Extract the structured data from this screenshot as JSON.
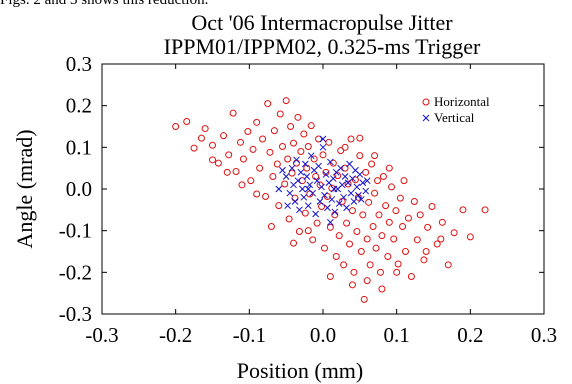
{
  "caption": "Figs. 2 and 3 shows this reduction.",
  "chart_data": {
    "type": "scatter",
    "title": "Oct '06 Intermacropulse Jitter",
    "subtitle": "IPPM01/IPPM02, 0.325-ms Trigger",
    "xlabel": "Position (mm)",
    "ylabel": "Angle (mrad)",
    "xlim": [
      -0.3,
      0.3
    ],
    "ylim": [
      -0.3,
      0.3
    ],
    "xticks": [
      -0.3,
      -0.2,
      -0.1,
      0.0,
      0.1,
      0.2,
      0.3
    ],
    "yticks": [
      -0.3,
      -0.2,
      -0.1,
      0.0,
      0.1,
      0.2,
      0.3
    ],
    "xtick_labels": [
      "-0.3",
      "-0.2",
      "-0.1",
      "0.0",
      "0.1",
      "0.2",
      "0.3"
    ],
    "ytick_labels": [
      "-0.3",
      "-0.2",
      "-0.1",
      "0.0",
      "0.1",
      "0.2",
      "0.3"
    ],
    "grid": false,
    "legend_position": "top-right",
    "series": [
      {
        "name": "Horizontal",
        "marker": "circle",
        "color": "#e01010",
        "points": [
          [
            -0.2,
            0.15
          ],
          [
            -0.185,
            0.162
          ],
          [
            -0.175,
            0.098
          ],
          [
            -0.165,
            0.122
          ],
          [
            -0.16,
            0.145
          ],
          [
            -0.15,
            0.105
          ],
          [
            -0.142,
            0.062
          ],
          [
            -0.135,
            0.128
          ],
          [
            -0.128,
            0.082
          ],
          [
            -0.122,
            0.182
          ],
          [
            -0.118,
            0.042
          ],
          [
            -0.112,
            0.112
          ],
          [
            -0.108,
            0.072
          ],
          [
            -0.102,
            0.138
          ],
          [
            -0.098,
            0.02
          ],
          [
            -0.095,
            0.095
          ],
          [
            -0.09,
            0.16
          ],
          [
            -0.086,
            0.05
          ],
          [
            -0.082,
            0.12
          ],
          [
            -0.078,
            -0.018
          ],
          [
            -0.075,
            0.205
          ],
          [
            -0.072,
            0.088
          ],
          [
            -0.068,
            0.03
          ],
          [
            -0.066,
            0.14
          ],
          [
            -0.062,
            0.06
          ],
          [
            -0.06,
            -0.04
          ],
          [
            -0.058,
            0.18
          ],
          [
            -0.055,
            0.102
          ],
          [
            -0.052,
            0.012
          ],
          [
            -0.05,
            0.212
          ],
          [
            -0.048,
            0.072
          ],
          [
            -0.046,
            -0.072
          ],
          [
            -0.044,
            0.15
          ],
          [
            -0.042,
            0.038
          ],
          [
            -0.04,
            0.11
          ],
          [
            -0.038,
            -0.022
          ],
          [
            -0.036,
            0.062
          ],
          [
            -0.034,
            0.172
          ],
          [
            -0.032,
            -0.102
          ],
          [
            -0.03,
            0.09
          ],
          [
            -0.028,
            0.02
          ],
          [
            -0.026,
            0.132
          ],
          [
            -0.024,
            -0.058
          ],
          [
            -0.022,
            0.05
          ],
          [
            -0.02,
            0.102
          ],
          [
            -0.018,
            -0.012
          ],
          [
            -0.016,
            0.152
          ],
          [
            -0.014,
            -0.122
          ],
          [
            -0.012,
            0.072
          ],
          [
            -0.01,
            0.03
          ],
          [
            -0.008,
            -0.082
          ],
          [
            -0.006,
            0.12
          ],
          [
            -0.004,
            0.01
          ],
          [
            -0.002,
            -0.042
          ],
          [
            0.0,
            0.082
          ],
          [
            0.002,
            -0.142
          ],
          [
            0.004,
            0.04
          ],
          [
            0.006,
            -0.018
          ],
          [
            0.008,
            0.112
          ],
          [
            0.01,
            -0.092
          ],
          [
            0.012,
            0.002
          ],
          [
            0.014,
            0.062
          ],
          [
            0.016,
            -0.062
          ],
          [
            0.018,
            -0.162
          ],
          [
            0.02,
            0.032
          ],
          [
            0.022,
            -0.112
          ],
          [
            0.024,
            0.092
          ],
          [
            0.026,
            -0.03
          ],
          [
            0.028,
            -0.182
          ],
          [
            0.03,
            0.05
          ],
          [
            0.032,
            -0.082
          ],
          [
            0.034,
            0.012
          ],
          [
            0.036,
            -0.132
          ],
          [
            0.038,
            0.12
          ],
          [
            0.04,
            -0.052
          ],
          [
            0.042,
            -0.2
          ],
          [
            0.044,
            0.022
          ],
          [
            0.046,
            -0.102
          ],
          [
            0.048,
            -0.02
          ],
          [
            0.05,
            0.08
          ],
          [
            0.052,
            -0.15
          ],
          [
            0.054,
            -0.062
          ],
          [
            0.056,
            -0.265
          ],
          [
            0.058,
            0.04
          ],
          [
            0.06,
            -0.12
          ],
          [
            0.062,
            -0.032
          ],
          [
            0.064,
            -0.182
          ],
          [
            0.066,
            0.06
          ],
          [
            0.068,
            -0.09
          ],
          [
            0.07,
            -0.01
          ],
          [
            0.072,
            -0.142
          ],
          [
            0.074,
            0.02
          ],
          [
            0.076,
            -0.062
          ],
          [
            0.078,
            -0.2
          ],
          [
            0.08,
            -0.112
          ],
          [
            0.082,
            0.03
          ],
          [
            0.085,
            -0.04
          ],
          [
            0.088,
            -0.162
          ],
          [
            0.09,
            -0.08
          ],
          [
            0.093,
            0.005
          ],
          [
            0.096,
            -0.12
          ],
          [
            0.099,
            -0.052
          ],
          [
            0.102,
            -0.18
          ],
          [
            0.105,
            -0.022
          ],
          [
            0.108,
            -0.09
          ],
          [
            0.112,
            -0.15
          ],
          [
            0.116,
            -0.07
          ],
          [
            0.12,
            -0.21
          ],
          [
            0.124,
            -0.03
          ],
          [
            0.128,
            -0.122
          ],
          [
            0.132,
            -0.062
          ],
          [
            0.137,
            -0.17
          ],
          [
            0.142,
            -0.092
          ],
          [
            0.148,
            -0.042
          ],
          [
            0.155,
            -0.132
          ],
          [
            0.162,
            -0.08
          ],
          [
            0.17,
            -0.182
          ],
          [
            0.178,
            -0.105
          ],
          [
            0.19,
            -0.05
          ],
          [
            0.2,
            -0.115
          ],
          [
            0.22,
            -0.05
          ],
          [
            -0.09,
            -0.012
          ],
          [
            -0.07,
            -0.09
          ],
          [
            -0.04,
            -0.13
          ],
          [
            -0.02,
            -0.1
          ],
          [
            0.03,
            0.1
          ],
          [
            0.05,
            0.122
          ],
          [
            0.07,
            0.08
          ],
          [
            0.09,
            0.05
          ],
          [
            0.11,
            0.02
          ],
          [
            -0.11,
            0.01
          ],
          [
            -0.13,
            0.04
          ],
          [
            -0.15,
            0.07
          ],
          [
            0.01,
            -0.21
          ],
          [
            0.04,
            -0.23
          ],
          [
            0.06,
            -0.22
          ],
          [
            0.08,
            -0.24
          ],
          [
            0.1,
            -0.2
          ],
          [
            0.14,
            -0.15
          ],
          [
            0.16,
            -0.12
          ]
        ]
      },
      {
        "name": "Vertical",
        "marker": "x",
        "color": "#1010d0",
        "points": [
          [
            -0.05,
            0.03
          ],
          [
            -0.045,
            -0.01
          ],
          [
            -0.042,
            0.05
          ],
          [
            -0.04,
            0.01
          ],
          [
            -0.038,
            -0.03
          ],
          [
            -0.036,
            0.07
          ],
          [
            -0.034,
            0.02
          ],
          [
            -0.032,
            -0.05
          ],
          [
            -0.03,
            0.04
          ],
          [
            -0.028,
            0.0
          ],
          [
            -0.026,
            -0.02
          ],
          [
            -0.024,
            0.06
          ],
          [
            -0.022,
            0.03
          ],
          [
            -0.02,
            -0.04
          ],
          [
            -0.018,
            0.01
          ],
          [
            -0.016,
            0.08
          ],
          [
            -0.014,
            -0.01
          ],
          [
            -0.012,
            0.045
          ],
          [
            -0.01,
            -0.06
          ],
          [
            -0.008,
            0.02
          ],
          [
            -0.006,
            0.055
          ],
          [
            -0.004,
            -0.03
          ],
          [
            -0.002,
            0.005
          ],
          [
            0.0,
            0.1
          ],
          [
            0.002,
            -0.015
          ],
          [
            0.004,
            0.035
          ],
          [
            0.006,
            -0.045
          ],
          [
            0.008,
            0.015
          ],
          [
            0.01,
            0.065
          ],
          [
            0.012,
            -0.025
          ],
          [
            0.014,
            0.025
          ],
          [
            0.016,
            -0.055
          ],
          [
            0.018,
            0.04
          ],
          [
            0.02,
            0.0
          ],
          [
            0.022,
            -0.035
          ],
          [
            0.024,
            0.05
          ],
          [
            0.026,
            0.01
          ],
          [
            0.028,
            -0.02
          ],
          [
            0.03,
            0.03
          ],
          [
            0.032,
            -0.045
          ],
          [
            0.034,
            0.015
          ],
          [
            0.036,
            0.06
          ],
          [
            0.038,
            -0.01
          ],
          [
            0.04,
            0.025
          ],
          [
            0.042,
            -0.03
          ],
          [
            0.044,
            0.045
          ],
          [
            0.046,
            0.005
          ],
          [
            0.048,
            -0.015
          ],
          [
            0.05,
            0.035
          ],
          [
            0.052,
            -0.025
          ],
          [
            0.054,
            0.015
          ],
          [
            0.058,
            -0.005
          ],
          [
            0.06,
            0.02
          ],
          [
            -0.06,
            0.0
          ],
          [
            -0.055,
            0.045
          ],
          [
            -0.048,
            -0.04
          ],
          [
            0.0,
            0.12
          ],
          [
            0.01,
            -0.08
          ],
          [
            -0.02,
            0.0
          ],
          [
            0.015,
            0.0
          ]
        ]
      }
    ]
  }
}
